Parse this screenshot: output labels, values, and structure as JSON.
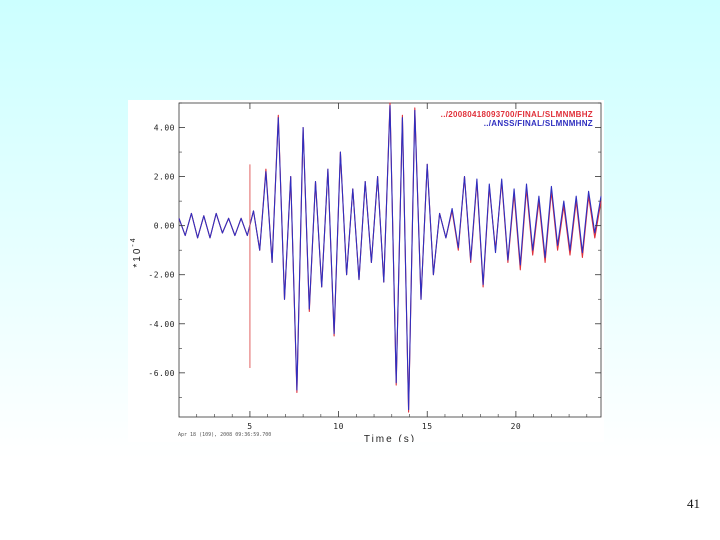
{
  "slide": {
    "number": "41"
  },
  "colors": {
    "series_red": "#e0303a",
    "series_blue": "#2f2fc0",
    "marker": "#e06060"
  },
  "chart_data": {
    "type": "line",
    "title": "",
    "xlabel": "Time (s)",
    "ylabel": "*10",
    "ylabel_exponent": "-4",
    "xlim": [
      1.0,
      24.8
    ],
    "ylim": [
      -7.8,
      5.0
    ],
    "xticks": [
      5,
      10,
      15,
      20
    ],
    "xtick_labels": [
      "5",
      "10",
      "15",
      "20"
    ],
    "yticks": [
      4,
      2,
      0,
      -2,
      -4,
      -6
    ],
    "ytick_labels": [
      "4.00",
      "2.00",
      "0.00",
      "-2.00",
      "-4.00",
      "-6.00"
    ],
    "marker_line": {
      "x": 5.0,
      "y_range": [
        -5.8,
        2.5
      ]
    },
    "footer": "Apr 18 (109), 2008 09:36:59.700",
    "grid": false,
    "legend_position": "top-right",
    "series": [
      {
        "name": "../20080418093700/FINAL/SLMNMBHZ",
        "color": "#e0303a",
        "x": [
          1.0,
          1.35,
          1.7,
          2.05,
          2.4,
          2.75,
          3.1,
          3.45,
          3.8,
          4.15,
          4.5,
          4.85,
          5.2,
          5.55,
          5.9,
          6.25,
          6.6,
          6.95,
          7.3,
          7.65,
          8.0,
          8.35,
          8.7,
          9.05,
          9.4,
          9.75,
          10.1,
          10.45,
          10.8,
          11.15,
          11.5,
          11.85,
          12.2,
          12.55,
          12.9,
          13.25,
          13.6,
          13.95,
          14.3,
          14.65,
          15.0,
          15.35,
          15.7,
          16.05,
          16.4,
          16.75,
          17.1,
          17.45,
          17.8,
          18.15,
          18.5,
          18.85,
          19.2,
          19.55,
          19.9,
          20.25,
          20.6,
          20.95,
          21.3,
          21.65,
          22.0,
          22.35,
          22.7,
          23.05,
          23.4,
          23.75,
          24.1,
          24.45,
          24.8
        ],
        "y": [
          0.3,
          -0.4,
          0.5,
          -0.5,
          0.4,
          -0.5,
          0.5,
          -0.3,
          0.3,
          -0.4,
          0.3,
          -0.4,
          0.6,
          -1.0,
          2.3,
          -1.5,
          4.5,
          -3.0,
          2.0,
          -6.8,
          4.0,
          -3.5,
          1.8,
          -2.5,
          2.3,
          -4.5,
          3.0,
          -2.0,
          1.5,
          -2.2,
          1.8,
          -1.5,
          2.0,
          -2.3,
          5.0,
          -6.5,
          4.5,
          -7.6,
          4.8,
          -3.0,
          2.5,
          -2.0,
          0.5,
          -0.5,
          0.6,
          -1.0,
          2.0,
          -1.5,
          1.8,
          -2.5,
          1.6,
          -1.0,
          1.8,
          -1.5,
          1.3,
          -1.8,
          1.5,
          -1.2,
          1.0,
          -1.5,
          1.4,
          -1.0,
          0.8,
          -1.2,
          1.0,
          -1.3,
          1.2,
          -0.5,
          1.0
        ]
      },
      {
        "name": "../ANSS/FINAL/SLMNMHNZ",
        "color": "#2f2fc0",
        "x": [
          1.0,
          1.35,
          1.7,
          2.05,
          2.4,
          2.75,
          3.1,
          3.45,
          3.8,
          4.15,
          4.5,
          4.85,
          5.2,
          5.55,
          5.9,
          6.25,
          6.6,
          6.95,
          7.3,
          7.65,
          8.0,
          8.35,
          8.7,
          9.05,
          9.4,
          9.75,
          10.1,
          10.45,
          10.8,
          11.15,
          11.5,
          11.85,
          12.2,
          12.55,
          12.9,
          13.25,
          13.6,
          13.95,
          14.3,
          14.65,
          15.0,
          15.35,
          15.7,
          16.05,
          16.4,
          16.75,
          17.1,
          17.45,
          17.8,
          18.15,
          18.5,
          18.85,
          19.2,
          19.55,
          19.9,
          20.25,
          20.6,
          20.95,
          21.3,
          21.65,
          22.0,
          22.35,
          22.7,
          23.05,
          23.4,
          23.75,
          24.1,
          24.45,
          24.8
        ],
        "y": [
          0.3,
          -0.4,
          0.5,
          -0.5,
          0.4,
          -0.5,
          0.5,
          -0.3,
          0.3,
          -0.4,
          0.3,
          -0.4,
          0.6,
          -1.0,
          2.2,
          -1.5,
          4.4,
          -3.0,
          2.0,
          -6.7,
          4.0,
          -3.4,
          1.8,
          -2.5,
          2.3,
          -4.4,
          3.0,
          -2.0,
          1.5,
          -2.2,
          1.8,
          -1.5,
          2.0,
          -2.3,
          4.9,
          -6.4,
          4.4,
          -7.5,
          4.7,
          -3.0,
          2.5,
          -2.0,
          0.5,
          -0.5,
          0.7,
          -0.9,
          2.0,
          -1.4,
          1.9,
          -2.4,
          1.7,
          -1.1,
          1.9,
          -1.4,
          1.5,
          -1.6,
          1.7,
          -1.0,
          1.2,
          -1.3,
          1.6,
          -0.8,
          1.0,
          -1.0,
          1.2,
          -1.1,
          1.4,
          -0.3,
          1.2
        ]
      }
    ]
  }
}
